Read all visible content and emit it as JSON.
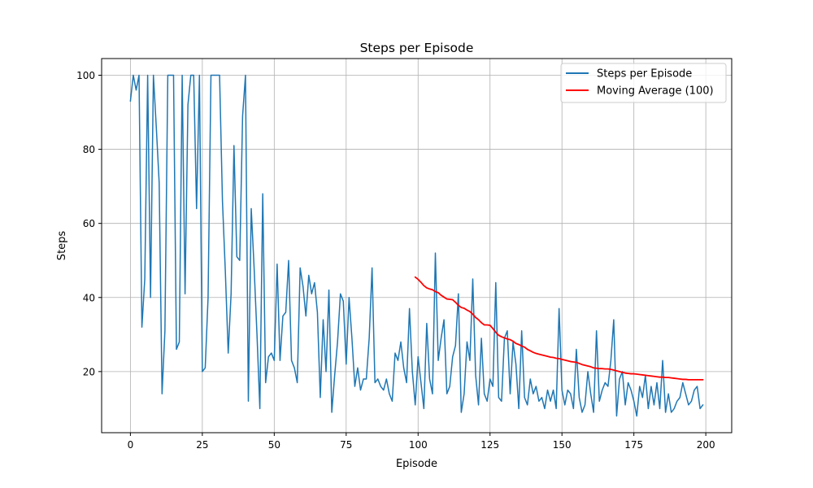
{
  "chart_data": {
    "type": "line",
    "title": "Steps per Episode",
    "xlabel": "Episode",
    "ylabel": "Steps",
    "xlim": [
      -10,
      209
    ],
    "ylim": [
      3.5,
      104.5
    ],
    "xticks": [
      0,
      25,
      50,
      75,
      100,
      125,
      150,
      175,
      200
    ],
    "yticks": [
      20,
      40,
      60,
      80,
      100
    ],
    "grid": true,
    "legend_position": "top-right",
    "series": [
      {
        "name": "Steps per Episode",
        "color": "#1f77b4",
        "x_start": 0,
        "values": [
          93,
          100,
          96,
          100,
          32,
          45,
          100,
          40,
          100,
          86,
          71,
          14,
          31,
          100,
          100,
          100,
          26,
          28,
          100,
          41,
          92,
          100,
          100,
          64,
          100,
          20,
          21,
          40,
          100,
          100,
          100,
          100,
          66,
          47,
          25,
          41,
          81,
          51,
          50,
          89,
          100,
          12,
          64,
          48,
          30,
          10,
          68,
          17,
          24,
          25,
          23,
          49,
          23,
          35,
          36,
          50,
          23,
          21,
          17,
          48,
          43,
          35,
          46,
          41,
          44,
          36,
          13,
          34,
          20,
          42,
          9,
          19,
          28,
          41,
          39,
          22,
          40,
          29,
          16,
          21,
          15,
          18,
          18,
          29,
          48,
          17,
          18,
          16,
          15,
          18,
          14,
          12,
          25,
          23,
          28,
          21,
          17,
          37,
          20,
          11,
          24,
          17,
          10,
          33,
          18,
          14,
          52,
          23,
          29,
          34,
          14,
          16,
          24,
          27,
          41,
          9,
          14,
          28,
          23,
          45,
          19,
          11,
          29,
          14,
          12,
          18,
          16,
          44,
          13,
          12,
          29,
          31,
          14,
          28,
          22,
          10,
          31,
          13,
          11,
          18,
          14,
          16,
          12,
          13,
          10,
          15,
          12,
          15,
          10,
          37,
          15,
          11,
          15,
          14,
          10,
          26,
          13,
          9,
          11,
          20,
          14,
          9,
          31,
          12,
          15,
          17,
          16,
          23,
          34,
          8,
          18,
          20,
          11,
          17,
          15,
          12,
          8,
          16,
          13,
          19,
          10,
          16,
          11,
          17,
          10,
          23,
          9,
          14,
          9,
          10,
          12,
          13,
          17,
          14,
          11,
          12,
          15,
          16,
          10,
          11
        ]
      },
      {
        "name": "Moving Average (100)",
        "color": "#ff0000",
        "x": [
          99,
          100,
          101,
          102,
          103,
          104,
          105,
          106,
          107,
          108,
          109,
          110,
          111,
          112,
          113,
          114,
          115,
          116,
          117,
          118,
          119,
          120,
          121,
          122,
          123,
          124,
          125,
          126,
          127,
          128,
          129,
          130,
          131,
          132,
          133,
          134,
          135,
          136,
          137,
          138,
          139,
          140,
          141,
          142,
          143,
          144,
          145,
          146,
          147,
          148,
          149,
          150,
          151,
          152,
          153,
          154,
          155,
          156,
          157,
          158,
          159,
          160,
          161,
          162,
          163,
          164,
          165,
          166,
          167,
          168,
          169,
          170,
          171,
          172,
          173,
          174,
          175,
          176,
          177,
          178,
          179,
          180,
          181,
          182,
          183,
          184,
          185,
          186,
          187,
          188,
          189,
          190,
          191,
          192,
          193,
          194,
          195,
          196,
          197,
          198,
          199
        ],
        "values": [
          45.5,
          44.9,
          44.1,
          43.2,
          42.6,
          42.3,
          42.1,
          41.6,
          41.3,
          40.6,
          40.1,
          39.6,
          39.5,
          39.4,
          38.7,
          37.9,
          37.3,
          37.1,
          36.6,
          36.2,
          35.5,
          34.6,
          34.0,
          33.2,
          32.6,
          32.6,
          32.5,
          31.6,
          30.6,
          29.8,
          29.4,
          29.1,
          28.8,
          28.6,
          28.2,
          27.6,
          27.3,
          26.9,
          26.6,
          26.0,
          25.6,
          25.2,
          24.9,
          24.7,
          24.5,
          24.3,
          24.1,
          23.9,
          23.8,
          23.6,
          23.5,
          23.3,
          23.1,
          22.9,
          22.7,
          22.6,
          22.5,
          22.2,
          21.9,
          21.7,
          21.5,
          21.3,
          21.0,
          20.9,
          20.8,
          20.8,
          20.7,
          20.7,
          20.6,
          20.4,
          20.2,
          20.0,
          19.8,
          19.6,
          19.5,
          19.4,
          19.4,
          19.3,
          19.2,
          19.1,
          19.0,
          18.9,
          18.8,
          18.7,
          18.6,
          18.5,
          18.5,
          18.4,
          18.4,
          18.3,
          18.2,
          18.1,
          18.0,
          17.9,
          17.9,
          17.8,
          17.8,
          17.8,
          17.8,
          17.8,
          17.8
        ]
      }
    ]
  }
}
